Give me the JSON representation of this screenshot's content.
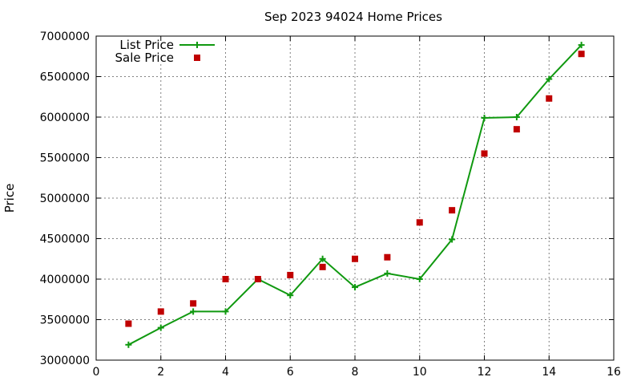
{
  "chart_data": {
    "type": "line",
    "title": "Sep 2023 94024 Home Prices",
    "xlabel": "",
    "ylabel": "Price",
    "xlim": [
      0,
      16
    ],
    "ylim": [
      3000000,
      7000000
    ],
    "x_ticks": [
      0,
      2,
      4,
      6,
      8,
      10,
      12,
      14,
      16
    ],
    "y_ticks": [
      3000000,
      3500000,
      4000000,
      4500000,
      5000000,
      5500000,
      6000000,
      6500000,
      7000000
    ],
    "x_tick_labels": [
      "0",
      "2",
      "4",
      "6",
      "8",
      "10",
      "12",
      "14",
      "16"
    ],
    "y_tick_labels": [
      "3000000",
      "3500000",
      "4000000",
      "4500000",
      "5000000",
      "5500000",
      "6000000",
      "6500000",
      "7000000"
    ],
    "grid": true,
    "legend_position": "top-left",
    "series": [
      {
        "name": "List Price",
        "style": "linespoints",
        "marker": "plus",
        "color": "#109910",
        "x": [
          1,
          2,
          3,
          4,
          5,
          6,
          7,
          8,
          9,
          10,
          11,
          12,
          13,
          14,
          15
        ],
        "values": [
          3190000,
          3400000,
          3600000,
          3600000,
          4000000,
          3800000,
          4250000,
          3900000,
          4070000,
          4000000,
          4490000,
          5990000,
          6000000,
          6470000,
          6890000
        ]
      },
      {
        "name": "Sale Price",
        "style": "points",
        "marker": "square",
        "color": "#c00000",
        "x": [
          1,
          2,
          3,
          4,
          5,
          6,
          7,
          8,
          9,
          10,
          11,
          12,
          13,
          14,
          15
        ],
        "values": [
          3450000,
          3600000,
          3700000,
          4000000,
          4000000,
          4050000,
          4150000,
          4250000,
          4270000,
          4700000,
          4850000,
          5550000,
          5850000,
          6230000,
          6780000
        ]
      }
    ]
  }
}
